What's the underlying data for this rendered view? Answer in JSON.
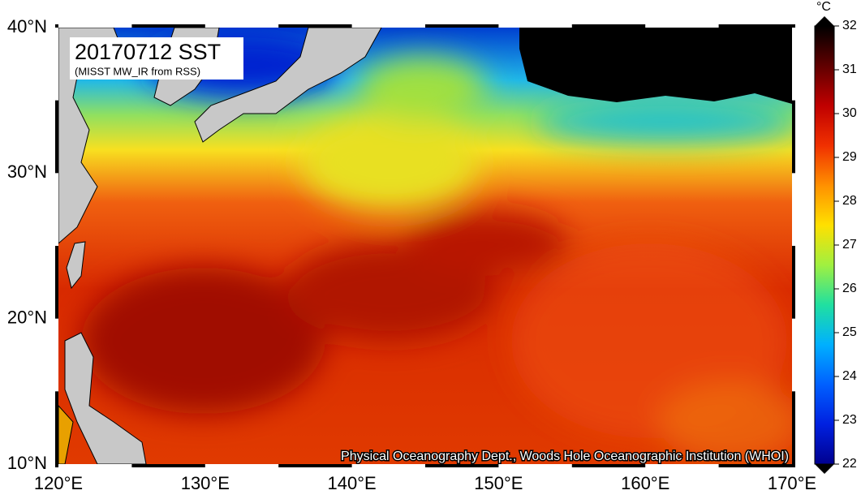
{
  "map": {
    "title": "20170712 SST",
    "subtitle": "(MISST MW_IR from RSS)",
    "credit": "Physical Oceanography Dept., Woods Hole Oceanographic Institution (WHOI)",
    "lon_range": [
      120,
      170
    ],
    "lat_range": [
      10,
      40
    ],
    "lon_labels": [
      {
        "value": 120,
        "label": "120°E"
      },
      {
        "value": 130,
        "label": "130°E"
      },
      {
        "value": 140,
        "label": "140°E"
      },
      {
        "value": 150,
        "label": "150°E"
      },
      {
        "value": 160,
        "label": "160°E"
      },
      {
        "value": 170,
        "label": "170°E"
      }
    ],
    "lat_labels": [
      {
        "value": 10,
        "label": "10°N"
      },
      {
        "value": 20,
        "label": "20°N"
      },
      {
        "value": 30,
        "label": "30°N"
      },
      {
        "value": 40,
        "label": "40°N"
      }
    ],
    "colorbar": {
      "unit": "°C",
      "range": [
        22,
        32
      ],
      "ticks": [
        22,
        23,
        24,
        25,
        26,
        27,
        28,
        29,
        30,
        31,
        32
      ],
      "colors": [
        "#00008f",
        "#0020e0",
        "#0060ff",
        "#00b0ff",
        "#20e0a0",
        "#a0f040",
        "#ffe000",
        "#ff9000",
        "#f03000",
        "#c00000",
        "#600000",
        "#000000"
      ]
    }
  }
}
